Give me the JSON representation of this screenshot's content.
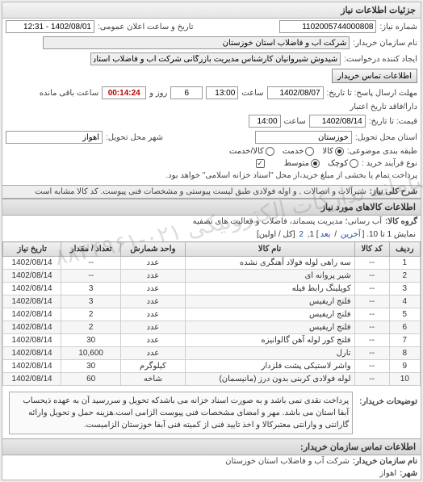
{
  "header": {
    "title": "جزئیات اطلاعات نیاز"
  },
  "need_no": {
    "label": "شماره نیاز:",
    "value": "1102005744000808"
  },
  "announce": {
    "label": "تاریخ و ساعت اعلان عمومی:",
    "value": "1402/08/01 - 12:31"
  },
  "buyer_name": {
    "label": "نام سازمان خریدار:",
    "value": "شرکت آب و فاضلاب استان خوزستان"
  },
  "requester": {
    "label": "ایجاد کننده درخواست:",
    "value": "شیدوش شیروانیان کارشناس مدیریت بازرگانی شرکت آب و فاضلاب استان خوز"
  },
  "contact_btn": "اطلاعات تماس خریدار",
  "deadline_send": {
    "label": "مهلت ارسال پاسخ: تا تاریخ:",
    "date": "1402/08/07",
    "time_label": "ساعت",
    "time": "13:00",
    "remain_days": "6",
    "remain_days_label": "روز و",
    "remain_time": "00:14:24",
    "remain_suffix": "ساعت باقی مانده"
  },
  "price_until": {
    "label": "قیمت: تا تاریخ:",
    "date": "1402/08/14",
    "time_label": "ساعت",
    "time": "14:00"
  },
  "credit_label": "دارا/فاقد تاریخ اعتبار",
  "deliver_state": {
    "label": "استان محل تحویل:",
    "value": "خوزستان"
  },
  "deliver_city": {
    "label": "شهر محل تحویل:",
    "value": "اهواز"
  },
  "pkg": {
    "label": "طبقه بندی موضوعی:",
    "opts": [
      "کالا",
      "خدمت",
      "کالا/خدمت"
    ],
    "selected": 0
  },
  "process": {
    "label": "نوع فرآیند خرید :",
    "opts": [
      "کوچک",
      "متوسط"
    ],
    "selected": 1,
    "note": "پرداخت تمام یا بخشی از مبلغ خرید،از محل \"اسناد خزانه اسلامی\" خواهد بود.",
    "note_chk": true
  },
  "desc_title": {
    "label": "شرح کلی نیاز:",
    "value": "شیرآلات و اتصالات , و اوله فولادی طبق لیست پیوستی و مشخصات فنی پیوست. کد کالا مشابه است"
  },
  "goods_header": "اطلاعات کالاهای مورد نیاز",
  "group": {
    "label": "گروه کالا:",
    "value": "آب رسانی؛ مدیریت پسماند، فاضلاب و فعالیت های تصفیه"
  },
  "pager": {
    "prefix": "نمایش 1 تا 10.  [",
    "last": "آخرین",
    "sep": " / ",
    "next": "بعد",
    "suffix": "] 1, ",
    "page2": "2",
    "tail": " [کل / اولین]"
  },
  "columns": [
    "ردیف",
    "کد کالا",
    "نام کالا",
    "واحد شمارش",
    "تعداد / مقدار",
    "تاریخ نیاز"
  ],
  "rows": [
    [
      "1",
      "--",
      "سه راهی لوله فولاد آهنگری نشده",
      "عدد",
      "--",
      "1402/08/14"
    ],
    [
      "2",
      "--",
      "شیر پروانه ای",
      "عدد",
      "--",
      "1402/08/14"
    ],
    [
      "3",
      "--",
      "کوپلینگ رابط فیله",
      "عدد",
      "3",
      "1402/08/14"
    ],
    [
      "4",
      "--",
      "فلنج اریفیس",
      "عدد",
      "3",
      "1402/08/14"
    ],
    [
      "5",
      "--",
      "فلنج اریفیس",
      "عدد",
      "2",
      "1402/08/14"
    ],
    [
      "6",
      "--",
      "فلنج اریفیس",
      "عدد",
      "2",
      "1402/08/14"
    ],
    [
      "7",
      "--",
      "فلنج کور لوله آهن گالوانیزه",
      "عدد",
      "30",
      "1402/08/14"
    ],
    [
      "8",
      "--",
      "تارل",
      "عدد",
      "10,600",
      "1402/08/14"
    ],
    [
      "9",
      "--",
      "واشر لاستیکی پشت فلزدار",
      "کیلوگرم",
      "30",
      "1402/08/14"
    ],
    [
      "10",
      "--",
      "لوله فولادی کربنی بدون درز (مانیسمان)",
      "شاخه",
      "60",
      "1402/08/14"
    ]
  ],
  "buyer_desc": {
    "label": "توضیحات خریدار:",
    "text": "پرداخت نقدی نمی باشد و به صورت اسناد خزانه می باشدکه تحویل و سررسید آن به عهده ذیحساب آبفا استان می باشد. مهر و امضای مشخصات فنی پیوست الزامی است.هزینه حمل و تحویل وارائه گارانتی و وارانتی معتبرکالا و اخذ تایید فنی از کمیته فنی آبفا خوزستان الزامیست."
  },
  "footer_header": "اطلاعات تماس سازمان خریدار:",
  "footer_org": {
    "label": "نام سازمان خریدار:",
    "value": "شرکت آب و فاضلاب استان خوزستان"
  },
  "footer_city": {
    "label": "شهر:",
    "value": "اهواز"
  },
  "watermark": "سامانه تدارکات الکترونیکی\n۰۲۱-۸۸۳۴۹۶۱"
}
